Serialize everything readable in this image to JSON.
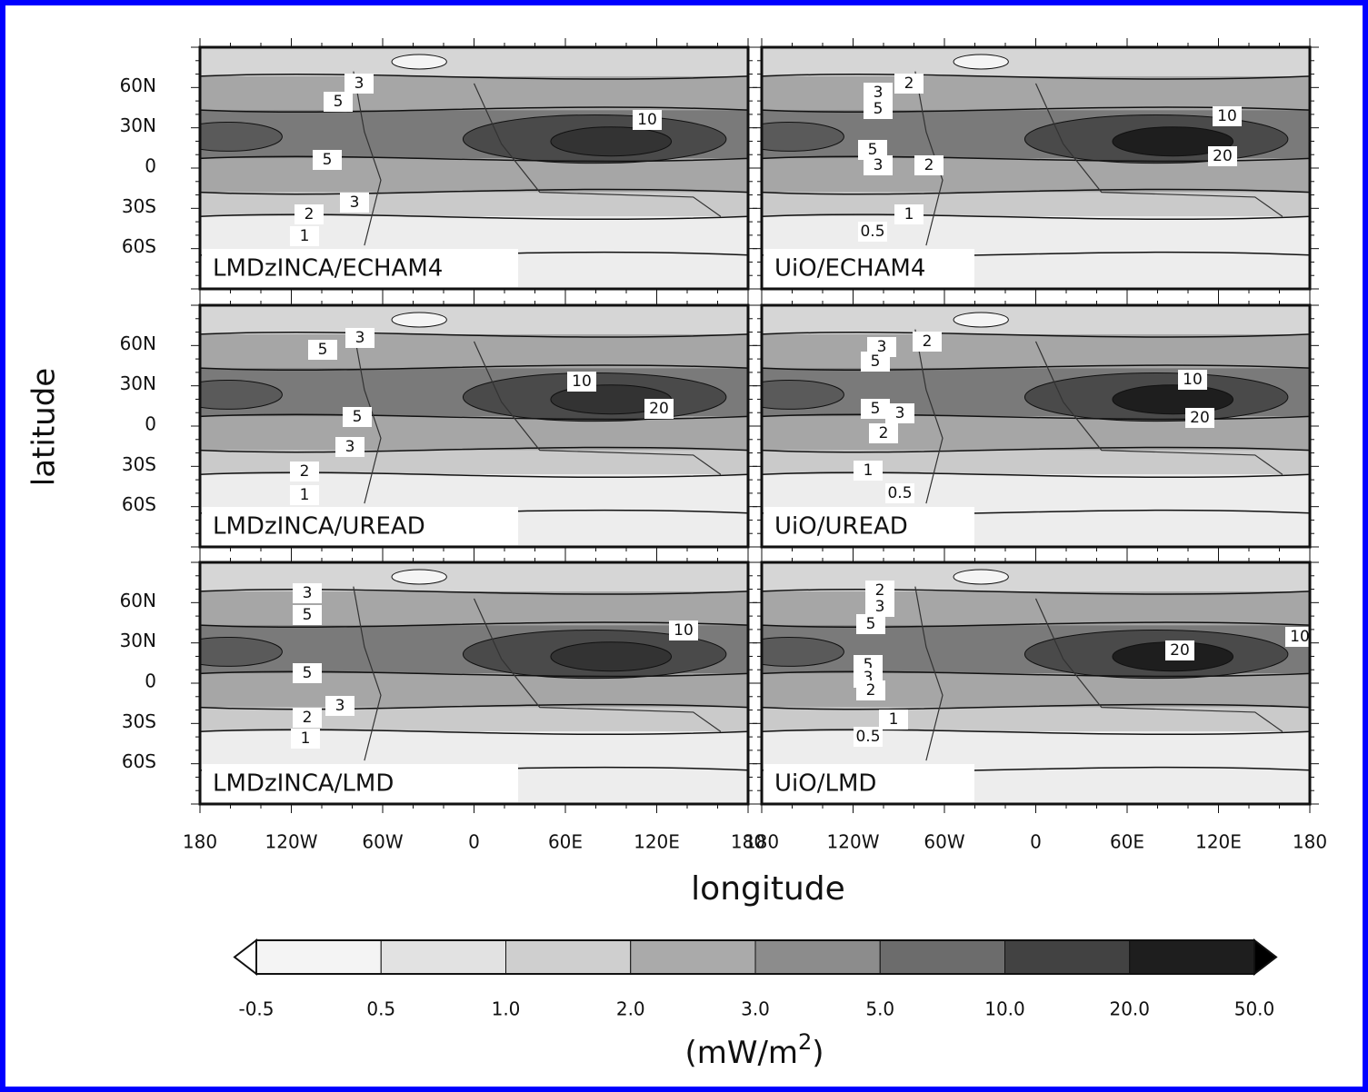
{
  "panels": [
    {
      "label": "LMDzINCA/ECHAM4",
      "contour_labels": [
        "3",
        "5",
        "10",
        "5",
        "3",
        "2",
        "1"
      ]
    },
    {
      "label": "UiO/ECHAM4",
      "contour_labels": [
        "2",
        "3",
        "5",
        "10",
        "20",
        "5",
        "3",
        "2",
        "1",
        "0.5"
      ]
    },
    {
      "label": "LMDzINCA/UREAD",
      "contour_labels": [
        "5",
        "3",
        "10",
        "20",
        "5",
        "3",
        "2",
        "1"
      ]
    },
    {
      "label": "UiO/UREAD",
      "contour_labels": [
        "3",
        "2",
        "5",
        "10",
        "5",
        "3",
        "20",
        "2",
        "1",
        "0.5"
      ]
    },
    {
      "label": "LMDzINCA/LMD",
      "contour_labels": [
        "3",
        "5",
        "10",
        "5",
        "3",
        "2",
        "1"
      ]
    },
    {
      "label": "UiO/LMD",
      "contour_labels": [
        "2",
        "3",
        "5",
        "20",
        "10",
        "5",
        "3",
        "2",
        "1",
        "0.5"
      ]
    }
  ],
  "x_axis": {
    "title": "longitude",
    "tick_labels": [
      "180",
      "120W",
      "60W",
      "0",
      "60E",
      "120E",
      "180"
    ]
  },
  "y_axis": {
    "title": "latitude",
    "tick_labels": [
      "60N",
      "30N",
      "0",
      "30S",
      "60S"
    ]
  },
  "colorbar": {
    "tick_labels": [
      "-0.5",
      "0.5",
      "1.0",
      "2.0",
      "3.0",
      "5.0",
      "10.0",
      "20.0",
      "50.0"
    ],
    "colors": [
      "#f4f4f4",
      "#e2e2e2",
      "#cfcfcf",
      "#aaaaaa",
      "#8c8c8c",
      "#6c6c6c",
      "#424242",
      "#1e1e1e"
    ],
    "units": {
      "text": "(mW/m",
      "superscript": "2",
      "close": ")"
    }
  }
}
